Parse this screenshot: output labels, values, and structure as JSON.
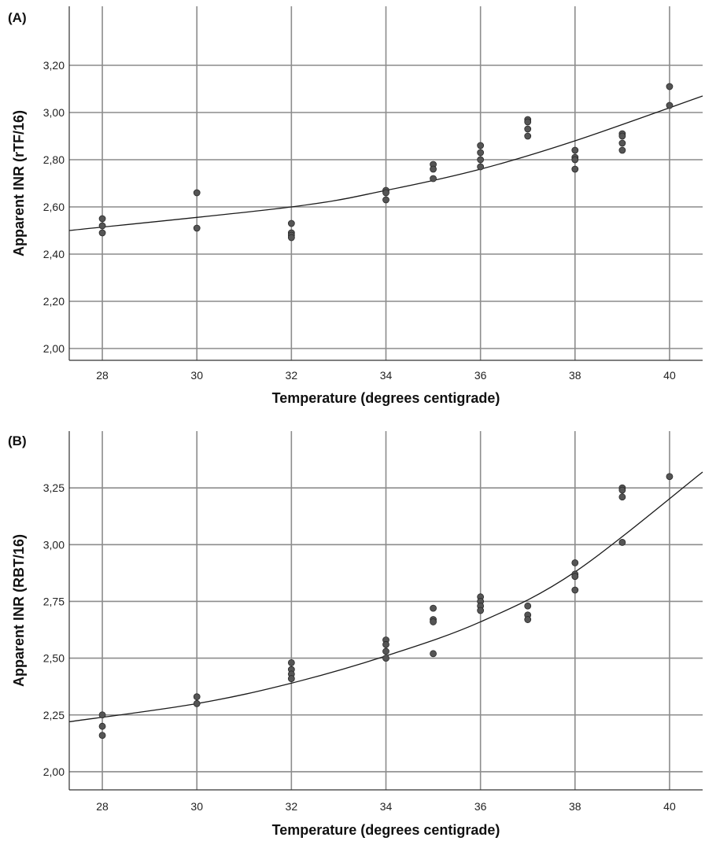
{
  "chart_data": [
    {
      "type": "scatter",
      "panel_label": "(A)",
      "xlabel": "Temperature (degrees centigrade)",
      "ylabel": "Apparent INR (rTF/16)",
      "xlim": [
        27.3,
        40.7
      ],
      "ylim": [
        1.95,
        3.45
      ],
      "xticks": [
        28,
        30,
        32,
        34,
        36,
        38,
        40
      ],
      "xtick_labels": [
        "28",
        "30",
        "32",
        "34",
        "36",
        "38",
        "40"
      ],
      "yticks": [
        2.0,
        2.2,
        2.4,
        2.6,
        2.8,
        3.0,
        3.2
      ],
      "ytick_labels": [
        "2,00",
        "2,20",
        "2,40",
        "2,60",
        "2,80",
        "3,00",
        "3,20"
      ],
      "grid": true,
      "points": [
        [
          28,
          2.55
        ],
        [
          28,
          2.52
        ],
        [
          28,
          2.49
        ],
        [
          30,
          2.66
        ],
        [
          30,
          2.51
        ],
        [
          32,
          2.53
        ],
        [
          32,
          2.49
        ],
        [
          32,
          2.48
        ],
        [
          32,
          2.47
        ],
        [
          34,
          2.67
        ],
        [
          34,
          2.66
        ],
        [
          34,
          2.63
        ],
        [
          35,
          2.78
        ],
        [
          35,
          2.76
        ],
        [
          35,
          2.72
        ],
        [
          36,
          2.86
        ],
        [
          36,
          2.83
        ],
        [
          36,
          2.8
        ],
        [
          36,
          2.77
        ],
        [
          37,
          2.97
        ],
        [
          37,
          2.96
        ],
        [
          37,
          2.93
        ],
        [
          37,
          2.9
        ],
        [
          38,
          2.84
        ],
        [
          38,
          2.81
        ],
        [
          38,
          2.8
        ],
        [
          38,
          2.76
        ],
        [
          39,
          2.91
        ],
        [
          39,
          2.9
        ],
        [
          39,
          2.87
        ],
        [
          39,
          2.84
        ],
        [
          40,
          3.11
        ],
        [
          40,
          3.03
        ]
      ],
      "fit": {
        "type": "quadratic",
        "x": [
          27.3,
          32,
          34,
          36,
          38,
          40.7
        ],
        "y": [
          2.5,
          2.6,
          2.67,
          2.76,
          2.88,
          3.07
        ]
      }
    },
    {
      "type": "scatter",
      "panel_label": "(B)",
      "xlabel": "Temperature (degrees centigrade)",
      "ylabel": "Apparent INR (RBT/16)",
      "xlim": [
        27.3,
        40.7
      ],
      "ylim": [
        1.92,
        3.5
      ],
      "xticks": [
        28,
        30,
        32,
        34,
        36,
        38,
        40
      ],
      "xtick_labels": [
        "28",
        "30",
        "32",
        "34",
        "36",
        "38",
        "40"
      ],
      "yticks": [
        2.0,
        2.25,
        2.5,
        2.75,
        3.0,
        3.25
      ],
      "ytick_labels": [
        "2,00",
        "2,25",
        "2,50",
        "2,75",
        "3,00",
        "3,25"
      ],
      "grid": true,
      "points": [
        [
          28,
          2.25
        ],
        [
          28,
          2.2
        ],
        [
          28,
          2.16
        ],
        [
          30,
          2.33
        ],
        [
          30,
          2.3
        ],
        [
          32,
          2.48
        ],
        [
          32,
          2.45
        ],
        [
          32,
          2.43
        ],
        [
          32,
          2.41
        ],
        [
          34,
          2.58
        ],
        [
          34,
          2.56
        ],
        [
          34,
          2.53
        ],
        [
          34,
          2.5
        ],
        [
          35,
          2.72
        ],
        [
          35,
          2.67
        ],
        [
          35,
          2.66
        ],
        [
          35,
          2.52
        ],
        [
          36,
          2.77
        ],
        [
          36,
          2.75
        ],
        [
          36,
          2.73
        ],
        [
          36,
          2.71
        ],
        [
          37,
          2.73
        ],
        [
          37,
          2.69
        ],
        [
          37,
          2.67
        ],
        [
          38,
          2.92
        ],
        [
          38,
          2.87
        ],
        [
          38,
          2.86
        ],
        [
          38,
          2.8
        ],
        [
          39,
          3.25
        ],
        [
          39,
          3.24
        ],
        [
          39,
          3.21
        ],
        [
          39,
          3.01
        ],
        [
          40,
          3.3
        ]
      ],
      "fit": {
        "type": "quadratic",
        "x": [
          27.3,
          30,
          32,
          34,
          36,
          38,
          40.7
        ],
        "y": [
          2.22,
          2.3,
          2.39,
          2.51,
          2.66,
          2.88,
          3.32
        ]
      }
    }
  ]
}
